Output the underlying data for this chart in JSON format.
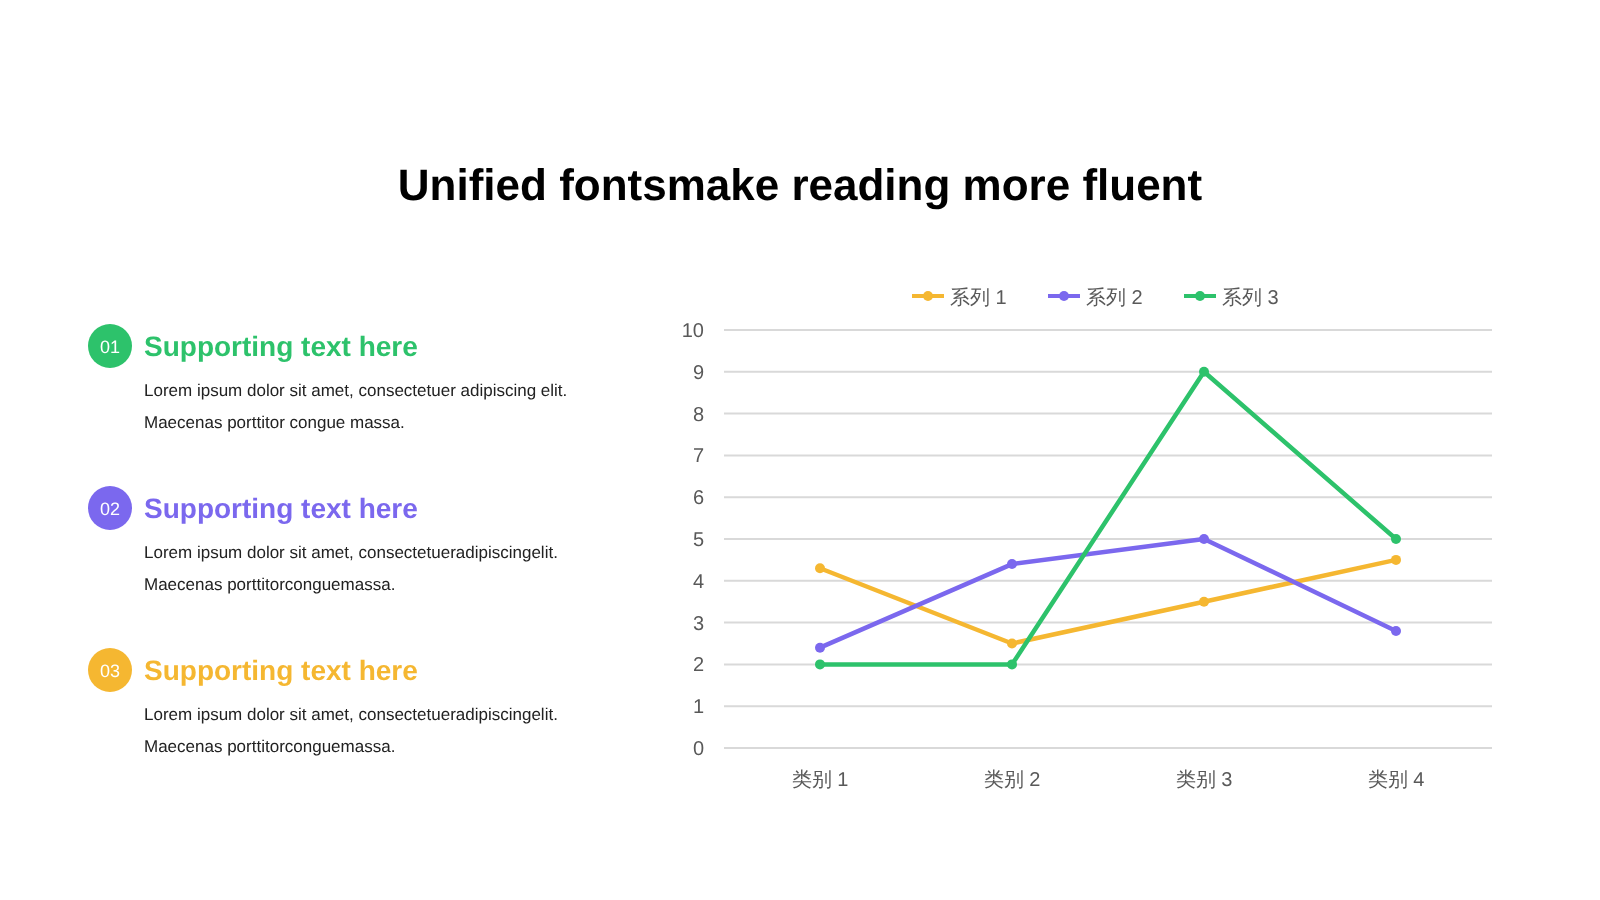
{
  "chart_data": [
    {
      "type": "other",
      "colors": [
        "#2dc26b",
        "#7b68ee",
        "#f5b731"
      ],
      "annotations": [
        "01",
        "Supporting text here",
        "Lorem ipsum dolor sit amet, consectetuer adipiscing elit.",
        "Maecenas porttitor congue massa.",
        "02",
        "Supporting text here",
        "Lorem ipsum dolor sit amet, consectetueradipiscingelit.",
        "Maecenas porttitorconguemassa.",
        "03",
        "Supporting text here",
        "Lorem ipsum dolor sit amet, consectetueradipiscingelit.",
        "Maecenas porttitorconguemassa."
      ]
    },
    {
      "type": "line",
      "title": "Unified fontsmake reading more fluent",
      "categories": [
        "类别 1",
        "类别 2",
        "类别 3",
        "类别 4"
      ],
      "series": [
        {
          "name": "系列 1",
          "color": "#f5b731",
          "values": [
            4.3,
            2.5,
            3.5,
            4.5
          ]
        },
        {
          "name": "系列 2",
          "color": "#7b68ee",
          "values": [
            2.4,
            4.4,
            5.0,
            2.8
          ]
        },
        {
          "name": "系列 3",
          "color": "#2dc26b",
          "values": [
            2,
            2,
            9,
            5
          ]
        }
      ],
      "ylim": [
        0,
        10
      ],
      "yticks": [
        0,
        1,
        2,
        3,
        4,
        5,
        6,
        7,
        8,
        9,
        10
      ],
      "grid": "y",
      "legend": "top",
      "marker": "circle",
      "line_style": "solid"
    }
  ]
}
